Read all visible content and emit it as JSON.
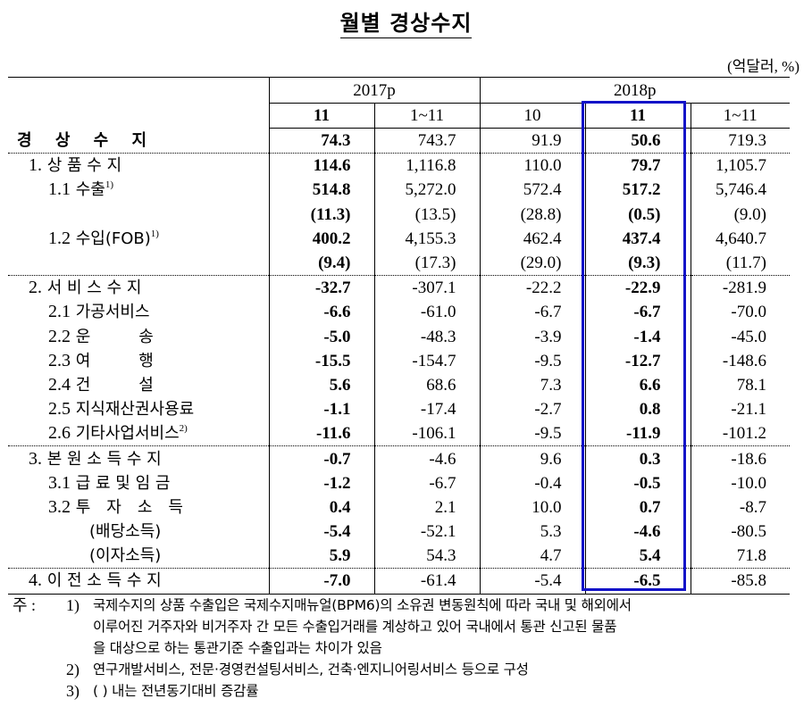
{
  "title": "월별 경상수지",
  "unit": "(억달러, %)",
  "header": {
    "years": [
      {
        "label": "2017p",
        "span": 2
      },
      {
        "label": "2018p",
        "span": 3
      }
    ],
    "periods": [
      {
        "label": "11",
        "bold": true
      },
      {
        "label": "1~11",
        "bold": false
      },
      {
        "label": "10",
        "bold": false
      },
      {
        "label": "11",
        "bold": true
      },
      {
        "label": "1~11",
        "bold": false
      }
    ],
    "highlighted_column": "2018p 11",
    "highlight_color": "#1212c8"
  },
  "rows": [
    {
      "label": "경 상 수 지",
      "level": 0,
      "values": [
        "74.3",
        "743.7",
        "91.9",
        "50.6",
        "719.3"
      ],
      "sep": "dot"
    },
    {
      "num": "1.",
      "label": "상 품 수 지",
      "level": 1,
      "values": [
        "114.6",
        "1,116.8",
        "110.0",
        "79.7",
        "1,105.7"
      ]
    },
    {
      "num": "1.1",
      "label": "수출",
      "note": "1)",
      "level": 2,
      "values": [
        "514.8",
        "5,272.0",
        "572.4",
        "517.2",
        "5,746.4"
      ]
    },
    {
      "num": "",
      "label": "",
      "level": 2,
      "values": [
        "(11.3)",
        "(13.5)",
        "(28.8)",
        "(0.5)",
        "(9.0)"
      ]
    },
    {
      "num": "1.2",
      "label": "수입(FOB)",
      "note": "1)",
      "level": 2,
      "values": [
        "400.2",
        "4,155.3",
        "462.4",
        "437.4",
        "4,640.7"
      ]
    },
    {
      "num": "",
      "label": "",
      "level": 2,
      "values": [
        "(9.4)",
        "(17.3)",
        "(29.0)",
        "(9.3)",
        "(11.7)"
      ],
      "sep": "dot"
    },
    {
      "num": "2.",
      "label": "서 비 스 수 지",
      "level": 1,
      "values": [
        "-32.7",
        "-307.1",
        "-22.2",
        "-22.9",
        "-281.9"
      ]
    },
    {
      "num": "2.1",
      "label": "가공서비스",
      "level": 2,
      "values": [
        "-6.6",
        "-61.0",
        "-6.7",
        "-6.7",
        "-70.0"
      ]
    },
    {
      "num": "2.2",
      "label": "운　　　송",
      "level": 2,
      "values": [
        "-5.0",
        "-48.3",
        "-3.9",
        "-1.4",
        "-45.0"
      ]
    },
    {
      "num": "2.3",
      "label": "여　　　행",
      "level": 2,
      "values": [
        "-15.5",
        "-154.7",
        "-9.5",
        "-12.7",
        "-148.6"
      ]
    },
    {
      "num": "2.4",
      "label": "건　　　설",
      "level": 2,
      "values": [
        "5.6",
        "68.6",
        "7.3",
        "6.6",
        "78.1"
      ]
    },
    {
      "num": "2.5",
      "label": "지식재산권사용료",
      "level": 2,
      "values": [
        "-1.1",
        "-17.4",
        "-2.7",
        "0.8",
        "-21.1"
      ]
    },
    {
      "num": "2.6",
      "label": "기타사업서비스",
      "note": "2)",
      "level": 2,
      "values": [
        "-11.6",
        "-106.1",
        "-9.5",
        "-11.9",
        "-101.2"
      ],
      "sep": "dot"
    },
    {
      "num": "3.",
      "label": "본 원 소 득 수 지",
      "level": 1,
      "values": [
        "-0.7",
        "-4.6",
        "9.6",
        "0.3",
        "-18.6"
      ]
    },
    {
      "num": "3.1",
      "label": "급 료 및 임 금",
      "level": 2,
      "values": [
        "-1.2",
        "-6.7",
        "-0.4",
        "-0.5",
        "-10.0"
      ]
    },
    {
      "num": "3.2",
      "label": "투　자　소　득",
      "level": 2,
      "values": [
        "0.4",
        "2.1",
        "10.0",
        "0.7",
        "-8.7"
      ]
    },
    {
      "num": "",
      "label": "(배당소득)",
      "level": 3,
      "values": [
        "-5.4",
        "-52.1",
        "5.3",
        "-4.6",
        "-80.5"
      ]
    },
    {
      "num": "",
      "label": "(이자소득)",
      "level": 3,
      "values": [
        "5.9",
        "54.3",
        "4.7",
        "5.4",
        "71.8"
      ],
      "sep": "dot"
    },
    {
      "num": "4.",
      "label": "이 전 소 득 수 지",
      "level": 1,
      "values": [
        "-7.0",
        "-61.4",
        "-5.4",
        "-6.5",
        "-85.8"
      ],
      "sep": "solid"
    }
  ],
  "notes": {
    "prefix": "주 :",
    "items": [
      {
        "num": "1)",
        "lines": [
          "국제수지의 상품 수출입은 국제수지매뉴얼(BPM6)의 소유권 변동원칙에 따라 국내 및 해외에서",
          "이루어진 거주자와 비거주자 간 모든 수출입거래를 계상하고 있어 국내에서 통관 신고된 물품",
          "을 대상으로 하는 통관기준 수출입과는 차이가 있음"
        ]
      },
      {
        "num": "2)",
        "lines": [
          "연구개발서비스, 전문·경영컨설팅서비스, 건축·엔지니어링서비스 등으로 구성"
        ]
      },
      {
        "num": "3)",
        "lines": [
          "(  ) 내는 전년동기대비 증감률"
        ]
      }
    ]
  }
}
